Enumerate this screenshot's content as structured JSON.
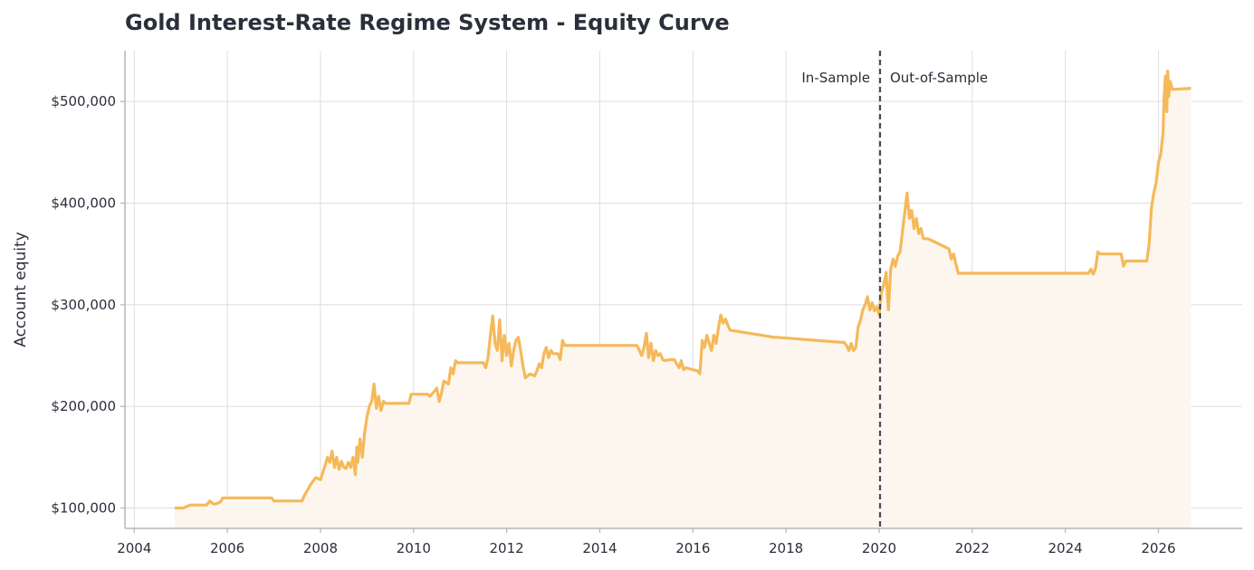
{
  "chart_data": {
    "type": "line",
    "title": "Gold Interest-Rate Regime System - Equity Curve",
    "ylabel": "Account equity",
    "xlabel": "",
    "xlim": [
      2003.8,
      2027.8
    ],
    "ylim": [
      80000,
      550000
    ],
    "x_ticks": [
      2004,
      2006,
      2008,
      2010,
      2012,
      2014,
      2016,
      2018,
      2020,
      2022,
      2024,
      2026
    ],
    "x_tick_labels": [
      "2004",
      "2006",
      "2008",
      "2010",
      "2012",
      "2014",
      "2016",
      "2018",
      "2020",
      "2022",
      "2024",
      "2026"
    ],
    "y_ticks": [
      100000,
      200000,
      300000,
      400000,
      500000
    ],
    "y_tick_labels": [
      "$100,000",
      "$200,000",
      "$300,000",
      "$400,000",
      "$500,000"
    ],
    "grid": true,
    "split_x": 2020.02,
    "annotations": {
      "in_sample": "In-Sample",
      "out_of_sample": "Out-of-Sample"
    },
    "colors": {
      "line": "#f5b95a",
      "fill": "#fdf6ee",
      "split": "#4a4a55",
      "grid": "#dedede",
      "axis": "#b5b5b5"
    },
    "series": [
      {
        "x": [
          2004.87,
          2005.05,
          2005.2,
          2005.25,
          2005.55,
          2005.62,
          2005.7,
          2005.75,
          2005.85,
          2005.9,
          2006.95,
          2007.0,
          2007.6,
          2007.65,
          2007.75,
          2007.8,
          2007.9,
          2008.0,
          2008.05,
          2008.1,
          2008.15,
          2008.2,
          2008.25,
          2008.3,
          2008.35,
          2008.4,
          2008.45,
          2008.5,
          2008.55,
          2008.6,
          2008.65,
          2008.7,
          2008.75,
          2008.78,
          2008.8,
          2008.85,
          2008.9,
          2008.95,
          2009.0,
          2009.05,
          2009.1,
          2009.15,
          2009.2,
          2009.25,
          2009.3,
          2009.35,
          2009.4,
          2009.45,
          2009.5,
          2009.55,
          2009.6,
          2009.9,
          2009.95,
          2010.3,
          2010.35,
          2010.45,
          2010.5,
          2010.55,
          2010.6,
          2010.65,
          2010.75,
          2010.8,
          2010.85,
          2010.9,
          2010.95,
          2011.0,
          2011.5,
          2011.55,
          2011.6,
          2011.65,
          2011.7,
          2011.75,
          2011.8,
          2011.85,
          2011.9,
          2011.95,
          2012.0,
          2012.05,
          2012.1,
          2012.15,
          2012.2,
          2012.25,
          2012.3,
          2012.35,
          2012.4,
          2012.5,
          2012.6,
          2012.65,
          2012.7,
          2012.75,
          2012.8,
          2012.85,
          2012.9,
          2012.95,
          2013.0,
          2013.1,
          2013.15,
          2013.2,
          2013.25,
          2013.3,
          2014.8,
          2014.85,
          2014.9,
          2014.95,
          2015.0,
          2015.05,
          2015.1,
          2015.15,
          2015.2,
          2015.25,
          2015.3,
          2015.35,
          2015.4,
          2015.5,
          2015.6,
          2015.7,
          2015.75,
          2015.8,
          2015.85,
          2016.1,
          2016.15,
          2016.2,
          2016.25,
          2016.3,
          2016.35,
          2016.4,
          2016.45,
          2016.5,
          2016.55,
          2016.6,
          2016.65,
          2016.7,
          2016.75,
          2016.8,
          2017.75,
          2017.8,
          2019.2,
          2019.25,
          2019.3,
          2019.35,
          2019.4,
          2019.45,
          2019.5,
          2019.55,
          2019.6,
          2019.65,
          2019.7,
          2019.75,
          2019.8,
          2019.85,
          2019.9,
          2019.95,
          2020.0,
          2020.05,
          2020.1,
          2020.15,
          2020.2,
          2020.25,
          2020.3,
          2020.35,
          2020.4,
          2020.45,
          2020.5,
          2020.55,
          2020.6,
          2020.65,
          2020.7,
          2020.75,
          2020.8,
          2020.85,
          2020.9,
          2020.95,
          2021.0,
          2021.05,
          2021.5,
          2021.55,
          2021.6,
          2021.65,
          2021.7,
          2021.75,
          2024.5,
          2024.55,
          2024.6,
          2024.65,
          2024.7,
          2024.75,
          2024.8,
          2025.2,
          2025.25,
          2025.3,
          2025.75,
          2025.8,
          2025.85,
          2025.9,
          2025.95,
          2026.0,
          2026.05,
          2026.1,
          2026.12,
          2026.15,
          2026.18,
          2026.2,
          2026.22,
          2026.25,
          2026.3,
          2026.35,
          2026.7
        ],
        "y": [
          100000,
          100000,
          103000,
          103000,
          103000,
          107000,
          104000,
          104000,
          106000,
          110000,
          110000,
          107000,
          107000,
          112000,
          120000,
          124000,
          130000,
          128000,
          135000,
          142000,
          150000,
          145000,
          156000,
          140000,
          150000,
          138000,
          146000,
          140000,
          139000,
          145000,
          140000,
          150000,
          133000,
          160000,
          145000,
          168000,
          150000,
          175000,
          190000,
          200000,
          205000,
          222000,
          198000,
          210000,
          196000,
          205000,
          203000,
          203000,
          203000,
          203000,
          203000,
          203000,
          212000,
          212000,
          210000,
          215000,
          218000,
          205000,
          213000,
          225000,
          222000,
          238000,
          232000,
          245000,
          243000,
          243000,
          243000,
          238000,
          248000,
          270000,
          289000,
          262000,
          255000,
          285000,
          245000,
          270000,
          250000,
          262000,
          240000,
          255000,
          265000,
          268000,
          255000,
          240000,
          228000,
          232000,
          230000,
          235000,
          242000,
          238000,
          252000,
          258000,
          248000,
          255000,
          252000,
          252000,
          246000,
          265000,
          260000,
          260000,
          260000,
          255000,
          250000,
          258000,
          272000,
          248000,
          262000,
          245000,
          255000,
          250000,
          252000,
          246000,
          245000,
          246000,
          246000,
          238000,
          245000,
          236000,
          238000,
          235000,
          232000,
          265000,
          258000,
          270000,
          262000,
          255000,
          270000,
          262000,
          278000,
          290000,
          282000,
          286000,
          280000,
          275000,
          268000,
          268000,
          263000,
          263000,
          260000,
          255000,
          262000,
          255000,
          258000,
          278000,
          285000,
          295000,
          300000,
          308000,
          295000,
          302000,
          294000,
          298000,
          290000,
          312000,
          320000,
          332000,
          295000,
          335000,
          345000,
          338000,
          348000,
          352000,
          372000,
          390000,
          410000,
          385000,
          393000,
          375000,
          385000,
          370000,
          375000,
          365000,
          365000,
          365000,
          355000,
          345000,
          350000,
          340000,
          331000,
          331000,
          331000,
          335000,
          330000,
          336000,
          352000,
          350000,
          350000,
          350000,
          338000,
          343000,
          343000,
          360000,
          395000,
          410000,
          420000,
          440000,
          448000,
          470000,
          502000,
          525000,
          490000,
          530000,
          505000,
          520000,
          512000,
          512000,
          513000
        ]
      }
    ]
  }
}
